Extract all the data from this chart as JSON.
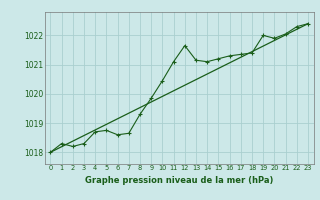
{
  "title": "Graphe pression niveau de la mer (hPa)",
  "bg_color": "#cce8e8",
  "grid_color": "#aacfcf",
  "line_color": "#1a5e1a",
  "xlim": [
    -0.5,
    23.5
  ],
  "ylim": [
    1017.6,
    1022.8
  ],
  "yticks": [
    1018,
    1019,
    1020,
    1021,
    1022
  ],
  "xticks": [
    0,
    1,
    2,
    3,
    4,
    5,
    6,
    7,
    8,
    9,
    10,
    11,
    12,
    13,
    14,
    15,
    16,
    17,
    18,
    19,
    20,
    21,
    22,
    23
  ],
  "data_x": [
    0,
    1,
    2,
    3,
    4,
    5,
    6,
    7,
    8,
    9,
    10,
    11,
    12,
    13,
    14,
    15,
    16,
    17,
    18,
    19,
    20,
    21,
    22,
    23
  ],
  "data_y": [
    1018.0,
    1018.3,
    1018.2,
    1018.3,
    1018.7,
    1018.75,
    1018.6,
    1018.65,
    1019.3,
    1019.85,
    1020.45,
    1021.1,
    1021.65,
    1021.15,
    1021.1,
    1021.2,
    1021.3,
    1021.35,
    1021.4,
    1022.0,
    1021.9,
    1022.05,
    1022.3,
    1022.4
  ],
  "trend_x": [
    0,
    23
  ],
  "trend_y": [
    1018.0,
    1022.4
  ]
}
